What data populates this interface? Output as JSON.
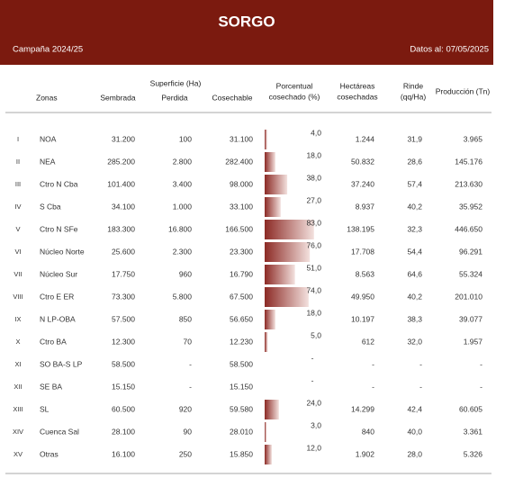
{
  "header": {
    "title": "SORGO",
    "campaign": "Campaña 2024/25",
    "date": "Datos al: 07/05/2025"
  },
  "table": {
    "group_header": "Superficie (Ha)",
    "columns": [
      [
        "Zonas"
      ],
      [
        "Sembrada"
      ],
      [
        "Perdida"
      ],
      [
        "Cosechable"
      ],
      [
        "Porcentual",
        "cosechado (%)"
      ],
      [
        "Hectáreas",
        "cosechadas"
      ],
      [
        "Rinde",
        "(qq/Ha)"
      ],
      [
        "Producción (Tn)"
      ]
    ],
    "rows": [
      [
        "I",
        "NOA",
        "31.200",
        "100",
        "31.100",
        {
          "value": 4,
          "label": "4,0"
        },
        "1.244",
        "31,9",
        "3.965"
      ],
      [
        "II",
        "NEA",
        "285.200",
        "2.800",
        "282.400",
        {
          "value": 18,
          "label": "18,0"
        },
        "50.832",
        "28,6",
        "145.176"
      ],
      [
        "III",
        "Ctro N Cba",
        "101.400",
        "3.400",
        "98.000",
        {
          "value": 38,
          "label": "38,0"
        },
        "37.240",
        "57,4",
        "213.630"
      ],
      [
        "IV",
        "S Cba",
        "34.100",
        "1.000",
        "33.100",
        {
          "value": 27,
          "label": "27,0"
        },
        "8.937",
        "40,2",
        "35.952"
      ],
      [
        "V",
        "Ctro N SFe",
        "183.300",
        "16.800",
        "166.500",
        {
          "value": 83,
          "label": "83,0"
        },
        "138.195",
        "32,3",
        "446.650"
      ],
      [
        "VI",
        "Núcleo Norte",
        "25.600",
        "2.300",
        "23.300",
        {
          "value": 76,
          "label": "76,0"
        },
        "17.708",
        "54,4",
        "96.291"
      ],
      [
        "VII",
        "Núcleo Sur",
        "17.750",
        "960",
        "16.790",
        {
          "value": 51,
          "label": "51,0"
        },
        "8.563",
        "64,6",
        "55.324"
      ],
      [
        "VIII",
        "Ctro E ER",
        "73.300",
        "5.800",
        "67.500",
        {
          "value": 74,
          "label": "74,0"
        },
        "49.950",
        "40,2",
        "201.010"
      ],
      [
        "IX",
        "N LP-OBA",
        "57.500",
        "850",
        "56.650",
        {
          "value": 18,
          "label": "18,0"
        },
        "10.197",
        "38,3",
        "39.077"
      ],
      [
        "X",
        "Ctro BA",
        "12.300",
        "70",
        "12.230",
        {
          "value": 5,
          "label": "5,0"
        },
        "612",
        "32,0",
        "1.957"
      ],
      [
        "XI",
        "SO BA-S LP",
        "58.500",
        "-",
        "58.500",
        "-",
        "-",
        "-",
        "-"
      ],
      [
        "XII",
        "SE BA",
        "15.150",
        "-",
        "15.150",
        "-",
        "-",
        "-",
        "-"
      ],
      [
        "XIII",
        "SL",
        "60.500",
        "920",
        "59.580",
        {
          "value": 24,
          "label": "24,0"
        },
        "14.299",
        "42,4",
        "60.605"
      ],
      [
        "XIV",
        "Cuenca Sal",
        "28.100",
        "90",
        "28.010",
        {
          "value": 3,
          "label": "3,0"
        },
        "840",
        "40,0",
        "3.361"
      ],
      [
        "XV",
        "Otras",
        "16.100",
        "250",
        "15.850",
        {
          "value": 12,
          "label": "12,0"
        },
        "1.902",
        "28,0",
        "5.326"
      ]
    ]
  }
}
